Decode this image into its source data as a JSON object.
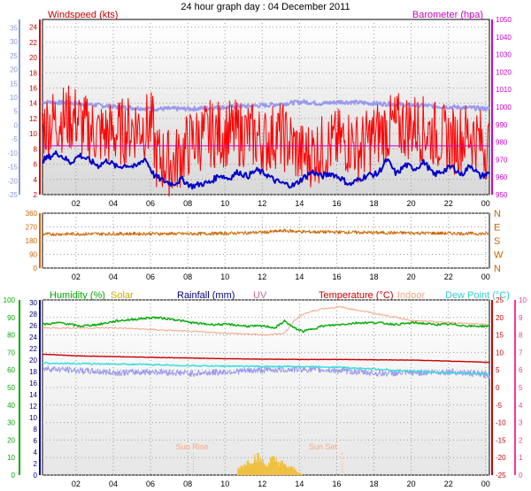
{
  "title": "24 hour graph day : 04 December 2011",
  "colors": {
    "wind": "#ff0000",
    "wind_axis": "#cc0000",
    "avg": "#0000cc",
    "baro": "#9999ee",
    "baro_axis": "#cc00cc",
    "dir": "#cc6600",
    "hum": "#00aa00",
    "temp": "#cc0000",
    "dew": "#33dddd",
    "indoor": "#f4a582",
    "solar": "#f0c040",
    "rain": "#000088",
    "uv": "#cc6699",
    "sun": "#f4a582",
    "left_axis": "#8899dd",
    "far_right": "#ff3399"
  },
  "chart_data": [
    {
      "type": "line",
      "title": "",
      "labels": {
        "windspeed": "Windspeed (kts)",
        "barometer": "Barometer (hpa)"
      },
      "ylim_wind": [
        2,
        25
      ],
      "yticks_wind": [
        2,
        4,
        6,
        8,
        10,
        12,
        14,
        16,
        18,
        20,
        22,
        24
      ],
      "ylim_baro": [
        950,
        1050
      ],
      "yticks_baro": [
        950,
        960,
        970,
        980,
        990,
        1000,
        1010,
        1020,
        1030,
        1040,
        1050
      ],
      "yticks_left": [
        -25,
        -20,
        -15,
        -10,
        -5,
        0,
        5,
        10,
        15,
        20,
        25,
        30,
        35
      ],
      "xticks": [
        "02",
        "04",
        "06",
        "08",
        "10",
        "12",
        "14",
        "16",
        "18",
        "20",
        "22",
        "00"
      ],
      "series": [
        {
          "name": "Windspeed",
          "x": [
            0,
            1,
            1.9,
            2.1,
            3,
            4,
            5,
            5.9,
            6.1,
            7,
            8,
            9,
            10,
            11,
            12,
            12.6,
            13.2,
            14,
            15,
            16,
            16.6,
            17,
            18,
            19,
            20,
            21,
            22,
            23,
            24
          ],
          "y": [
            11,
            12,
            12,
            11,
            10,
            10,
            11,
            11,
            7,
            6,
            9,
            10,
            10,
            10,
            9,
            10,
            9,
            7,
            8,
            9,
            9,
            8,
            10,
            11,
            11,
            10,
            9,
            10,
            8
          ]
        },
        {
          "name": "Average",
          "x": [
            0,
            0.8,
            1.5,
            2,
            3,
            3.5,
            4,
            4.5,
            5,
            5.5,
            6,
            6.5,
            7,
            7.5,
            8,
            8.5,
            9,
            9.5,
            10,
            10.5,
            11,
            11.5,
            12,
            12.5,
            13,
            13.5,
            14,
            14.5,
            15,
            15.5,
            16,
            16.5,
            17,
            17.5,
            18,
            18.5,
            19,
            19.5,
            20,
            20.5,
            21,
            21.5,
            22,
            22.5,
            23,
            23.5,
            24
          ],
          "y": [
            6.5,
            7.5,
            6.2,
            7.2,
            5.8,
            6.5,
            5.6,
            5.9,
            5.6,
            6.8,
            4.5,
            3.8,
            3.4,
            4,
            3.1,
            3.4,
            3.6,
            4.6,
            4.1,
            5,
            4.4,
            5.2,
            4.7,
            3.8,
            3.4,
            3.2,
            4.2,
            5,
            4.4,
            4.8,
            4.2,
            3.3,
            4,
            4.6,
            4.7,
            6.6,
            4.7,
            5.9,
            5.4,
            6.3,
            4.6,
            5.1,
            5.7,
            4.6,
            5.9,
            4.4,
            4.8
          ]
        },
        {
          "name": "Barometer",
          "x": [
            0,
            2,
            4,
            6,
            8,
            10,
            12,
            13,
            14,
            15,
            16,
            18,
            20,
            22,
            24
          ],
          "y": [
            1003,
            1002,
            1000,
            999,
            999,
            1000,
            1001,
            1002,
            1003,
            1002,
            1003,
            1002,
            1001,
            1000,
            999
          ]
        }
      ],
      "reference_line": {
        "value": 8.4,
        "color": "#cc00cc"
      }
    },
    {
      "type": "line",
      "title": "",
      "yticks": [
        0,
        90,
        180,
        270,
        360
      ],
      "ylim": [
        0,
        360
      ],
      "right_labels": [
        "N",
        "W",
        "S",
        "E",
        "N"
      ],
      "xticks": [
        "02",
        "04",
        "06",
        "08",
        "10",
        "12",
        "14",
        "16",
        "18",
        "20",
        "22",
        "00"
      ],
      "series": [
        {
          "name": "Wind Direction",
          "x": [
            0,
            2,
            4,
            6,
            8,
            10,
            12,
            13,
            14,
            16,
            18,
            20,
            22,
            24
          ],
          "y": [
            222,
            224,
            225,
            226,
            225,
            228,
            235,
            245,
            238,
            236,
            232,
            230,
            228,
            225
          ]
        }
      ]
    },
    {
      "type": "line",
      "title": "",
      "legend": {
        "humidity": "Humidity (%)",
        "solar": "Solar",
        "rainfall": "Rainfall (mm)",
        "uv": "UV",
        "temperature": "Temperature (°C)",
        "indoor": "Indoor",
        "dew_point": "Dew Point (°C)"
      },
      "ylim_humidity": [
        0,
        100
      ],
      "yticks_humidity": [
        0,
        10,
        20,
        30,
        40,
        50,
        60,
        70,
        80,
        90,
        100
      ],
      "yticks_rain": [
        0,
        2,
        4,
        6,
        8,
        10,
        12,
        14,
        16,
        18,
        20,
        22,
        24,
        26,
        28,
        30
      ],
      "ylim_temp": [
        -25,
        25
      ],
      "yticks_temp": [
        -25,
        -20,
        -15,
        -10,
        -5,
        0,
        5,
        10,
        15,
        20,
        25
      ],
      "yticks_uv": [
        0,
        1,
        2,
        3,
        4,
        5,
        6,
        7,
        8,
        9,
        10
      ],
      "xticks": [
        "02",
        "04",
        "06",
        "08",
        "10",
        "12",
        "14",
        "16",
        "18",
        "20",
        "22",
        "00"
      ],
      "annotations": {
        "sun_rise": "Sun Rise",
        "sun_set": "Sun Set",
        "sun_rise_hour": 8.1,
        "sun_set_hour": 16.1
      },
      "series": [
        {
          "name": "Humidity",
          "x": [
            0,
            1,
            2,
            3,
            4,
            5,
            6,
            7,
            8,
            9,
            10,
            11,
            12,
            12.5,
            13,
            13.5,
            14,
            15,
            16,
            17,
            18,
            19,
            20,
            21,
            22,
            23,
            24
          ],
          "y": [
            86,
            87,
            85,
            86,
            88,
            89,
            90,
            89,
            87,
            86,
            86,
            85,
            85,
            84,
            88,
            84,
            82,
            85,
            86,
            87,
            87,
            86,
            87,
            86,
            86,
            85,
            85
          ]
        },
        {
          "name": "Indoor",
          "x": [
            0,
            4,
            8,
            10,
            12,
            13,
            13.5,
            14,
            15,
            16,
            17,
            18,
            19,
            20,
            22,
            24
          ],
          "y": [
            17,
            17,
            16,
            15.5,
            15,
            15.5,
            19,
            21,
            22.5,
            23,
            22,
            21,
            20,
            19,
            18.5,
            18
          ]
        },
        {
          "name": "Temperature",
          "x": [
            0,
            2,
            4,
            6,
            8,
            10,
            12,
            14,
            16,
            18,
            20,
            22,
            24
          ],
          "y": [
            9.5,
            9,
            8.8,
            8.6,
            8.4,
            8.2,
            8.1,
            8,
            8,
            7.9,
            7.8,
            7.5,
            7.2
          ]
        },
        {
          "name": "Dew Point",
          "x": [
            0,
            2,
            4,
            6,
            8,
            10,
            12,
            14,
            16,
            18,
            20,
            22,
            24
          ],
          "y": [
            7,
            6.8,
            6.7,
            6.5,
            6.2,
            6.1,
            6,
            6,
            5.8,
            5.2,
            4.6,
            4.1,
            3.8
          ]
        },
        {
          "name": "Temperature 2",
          "x": [
            0,
            2,
            4,
            6,
            8,
            10,
            12,
            14,
            16,
            18,
            20,
            22,
            24
          ],
          "y": [
            5.5,
            4.8,
            4.2,
            4.5,
            4,
            4.5,
            5,
            5.2,
            4.8,
            4,
            4.2,
            4.5,
            3.5
          ]
        },
        {
          "name": "Solar",
          "x": [
            10.5,
            11,
            11.5,
            12,
            12.3,
            12.8,
            13,
            13.5,
            14
          ],
          "y": [
            4,
            8,
            12,
            6,
            10,
            8,
            6,
            4,
            0
          ]
        }
      ]
    }
  ]
}
